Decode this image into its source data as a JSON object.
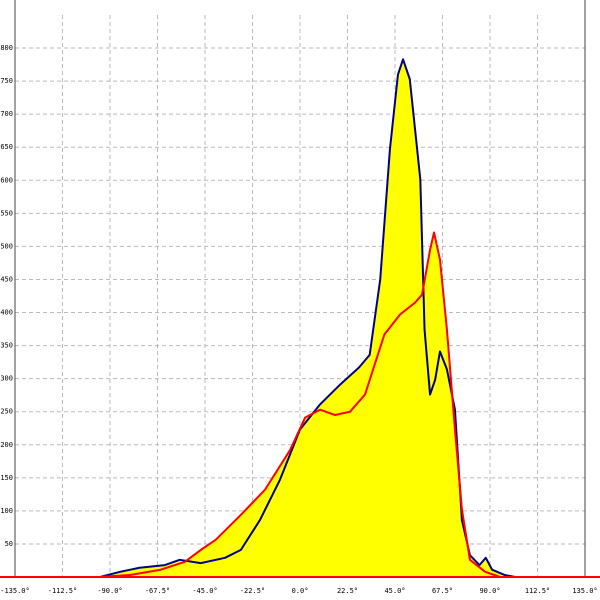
{
  "chart_data": {
    "type": "line",
    "xlim": [
      -135,
      135
    ],
    "ylim": [
      0,
      850
    ],
    "xticks": [
      {
        "value": -135,
        "label": "-135.0°"
      },
      {
        "value": -112.5,
        "label": "-112.5°"
      },
      {
        "value": -90,
        "label": "-90.0°"
      },
      {
        "value": -67.5,
        "label": "-67.5°"
      },
      {
        "value": -45,
        "label": "-45.0°"
      },
      {
        "value": -22.5,
        "label": "-22.5°"
      },
      {
        "value": 0,
        "label": "0.0°"
      },
      {
        "value": 22.5,
        "label": "22.5°"
      },
      {
        "value": 45,
        "label": "45.0°"
      },
      {
        "value": 67.5,
        "label": "67.5°"
      },
      {
        "value": 90,
        "label": "90.0°"
      },
      {
        "value": 112.5,
        "label": "112.5°"
      },
      {
        "value": 135,
        "label": "135.0°"
      }
    ],
    "yticks": [
      50,
      100,
      150,
      200,
      250,
      300,
      350,
      400,
      450,
      500,
      550,
      600,
      650,
      700,
      750,
      800
    ],
    "grid": true,
    "series": [
      {
        "color": "#00008b",
        "fill": "#ffff00",
        "x": [
          -94.7,
          -85,
          -76,
          -64,
          -57,
          -47,
          -35.5,
          -28,
          -19,
          -9.5,
          0,
          9.5,
          19,
          28,
          33,
          38,
          42.6,
          46.4,
          48.8,
          52,
          57,
          59,
          61.6,
          64,
          66.3,
          69.6,
          73.4,
          76.7,
          80.5,
          85,
          88,
          91,
          97,
          102
        ],
        "values": [
          0,
          8,
          14,
          18,
          26,
          21,
          29,
          41,
          86,
          147,
          223,
          261,
          291,
          317,
          336,
          450,
          647,
          760,
          783,
          753,
          601,
          374,
          276,
          298,
          341,
          314,
          253,
          86,
          33,
          18,
          29,
          11,
          3,
          0
        ]
      },
      {
        "color": "#ff0000",
        "fill": "#ffff00",
        "x": [
          -94.7,
          -80.5,
          -66,
          -54.5,
          -47,
          -40,
          -28,
          -16.6,
          -4.7,
          2.4,
          9.5,
          16.6,
          23.7,
          30.8,
          40,
          47.4,
          54.5,
          57.8,
          61.6,
          63.5,
          66.3,
          69.6,
          73.4,
          76.7,
          80.5,
          87.6,
          94.7
        ],
        "values": [
          0,
          3,
          11,
          23,
          41,
          56,
          94,
          132,
          192,
          241,
          253,
          245,
          250,
          276,
          367,
          397,
          415,
          427,
          495,
          521,
          480,
          374,
          223,
          102,
          26,
          8,
          0
        ]
      }
    ]
  }
}
